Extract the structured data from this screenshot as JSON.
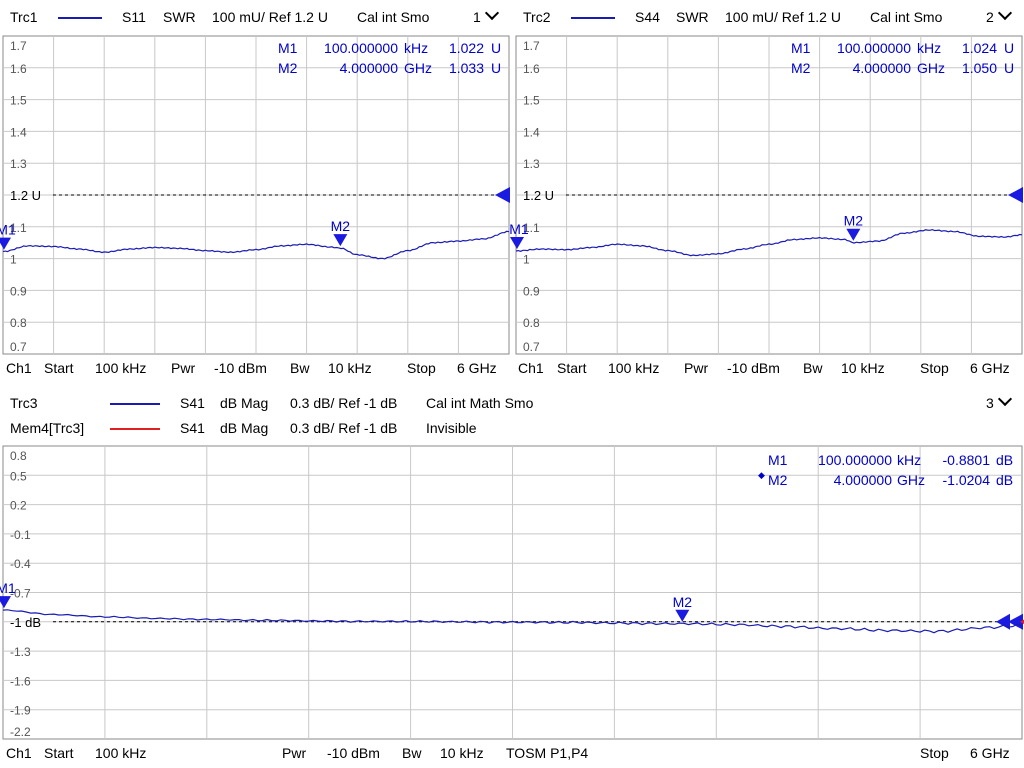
{
  "colors": {
    "trace": "#1a1ab4",
    "memory": "#e02020",
    "marker": "#1a1ae0",
    "grid": "#c8c8c8",
    "frame": "#8a8a8a",
    "marker_text": "#0000cc"
  },
  "charts": [
    {
      "header": {
        "trace": "Trc1",
        "param": "S11",
        "format": "SWR",
        "scale": "100 mU/ Ref 1.2 U",
        "info": "Cal int Smo",
        "channel": "1"
      },
      "markers": [
        {
          "name": "M1",
          "stim": "100.000000",
          "stim_unit": "kHz",
          "resp": "1.022",
          "resp_unit": "U"
        },
        {
          "name": "M2",
          "stim": "4.000000",
          "stim_unit": "GHz",
          "resp": "1.033",
          "resp_unit": "U"
        }
      ],
      "ref_label": "1.2 U",
      "footer": {
        "ch": "Ch1",
        "start_label": "Start",
        "start": "100 kHz",
        "pwr_label": "Pwr",
        "pwr": "-10 dBm",
        "bw_label": "Bw",
        "bw": "10 kHz",
        "stop_label": "Stop",
        "stop": "6 GHz"
      }
    },
    {
      "header": {
        "trace": "Trc2",
        "param": "S44",
        "format": "SWR",
        "scale": "100 mU/ Ref 1.2 U",
        "info": "Cal int Smo",
        "channel": "2"
      },
      "markers": [
        {
          "name": "M1",
          "stim": "100.000000",
          "stim_unit": "kHz",
          "resp": "1.024",
          "resp_unit": "U"
        },
        {
          "name": "M2",
          "stim": "4.000000",
          "stim_unit": "GHz",
          "resp": "1.050",
          "resp_unit": "U"
        }
      ],
      "ref_label": "1.2 U",
      "footer": {
        "ch": "Ch1",
        "start_label": "Start",
        "start": "100 kHz",
        "pwr_label": "Pwr",
        "pwr": "-10 dBm",
        "bw_label": "Bw",
        "bw": "10 kHz",
        "stop_label": "Stop",
        "stop": "6 GHz"
      }
    },
    {
      "header": {
        "trace": "Trc3",
        "param": "S41",
        "format": "dB Mag",
        "scale": "0.3 dB/ Ref -1 dB",
        "info": "Cal int Math Smo",
        "channel": "3"
      },
      "header2": {
        "trace": "Mem4[Trc3]",
        "param": "S41",
        "format": "dB Mag",
        "scale": "0.3 dB/ Ref -1 dB",
        "info": "Invisible"
      },
      "markers": [
        {
          "name": "M1",
          "stim": "100.000000",
          "stim_unit": "kHz",
          "resp": "-0.8801",
          "resp_unit": "dB"
        },
        {
          "name": "M2",
          "stim": "4.000000",
          "stim_unit": "GHz",
          "resp": "-1.0204",
          "resp_unit": "dB"
        }
      ],
      "ref_label": "-1 dB",
      "footer": {
        "ch": "Ch1",
        "start_label": "Start",
        "start": "100 kHz",
        "pwr_label": "Pwr",
        "pwr": "-10 dBm",
        "bw_label": "Bw",
        "bw": "10 kHz",
        "cal_label": "TOSM P1,P4",
        "stop_label": "Stop",
        "stop": "6 GHz"
      }
    }
  ],
  "chart_data": [
    {
      "type": "line",
      "xlim": [
        0.0001,
        6
      ],
      "ylim": [
        0.7,
        1.7
      ],
      "yticks": [
        "1.7",
        "1.6",
        "1.5",
        "1.4",
        "1.3",
        "1.2 U",
        "1.1",
        "1",
        "0.9",
        "0.8",
        "0.7"
      ],
      "reference": 1.2,
      "series": [
        {
          "x": [
            0.0001,
            0.3,
            0.6,
            0.9,
            1.2,
            1.5,
            1.8,
            2.1,
            2.4,
            2.7,
            3.0,
            3.3,
            3.6,
            3.9,
            4.0,
            4.2,
            4.5,
            4.8,
            5.1,
            5.4,
            5.7,
            6.0
          ],
          "values": [
            1.022,
            1.04,
            1.038,
            1.03,
            1.02,
            1.03,
            1.035,
            1.032,
            1.025,
            1.02,
            1.028,
            1.04,
            1.045,
            1.036,
            1.033,
            1.012,
            1.0,
            1.025,
            1.05,
            1.055,
            1.062,
            1.085
          ]
        }
      ],
      "markers": [
        {
          "name": "M1",
          "x": 0.0001,
          "y": 1.022
        },
        {
          "name": "M2",
          "x": 4.0,
          "y": 1.033
        }
      ]
    },
    {
      "type": "line",
      "xlim": [
        0.0001,
        6
      ],
      "ylim": [
        0.7,
        1.7
      ],
      "yticks": [
        "1.7",
        "1.6",
        "1.5",
        "1.4",
        "1.3",
        "1.2 U",
        "1.1",
        "1",
        "0.9",
        "0.8",
        "0.7"
      ],
      "reference": 1.2,
      "series": [
        {
          "x": [
            0.0001,
            0.3,
            0.6,
            0.9,
            1.2,
            1.5,
            1.8,
            2.1,
            2.4,
            2.7,
            3.0,
            3.3,
            3.6,
            3.9,
            4.0,
            4.3,
            4.6,
            4.9,
            5.2,
            5.5,
            5.8,
            6.0
          ],
          "values": [
            1.024,
            1.03,
            1.028,
            1.035,
            1.045,
            1.04,
            1.025,
            1.01,
            1.015,
            1.03,
            1.045,
            1.06,
            1.065,
            1.06,
            1.05,
            1.055,
            1.08,
            1.09,
            1.085,
            1.07,
            1.068,
            1.075
          ]
        }
      ],
      "markers": [
        {
          "name": "M1",
          "x": 0.0001,
          "y": 1.024
        },
        {
          "name": "M2",
          "x": 4.0,
          "y": 1.05
        }
      ]
    },
    {
      "type": "line",
      "xlim": [
        0.0001,
        6
      ],
      "ylim": [
        -2.2,
        0.8
      ],
      "yticks": [
        "0.8",
        "0.5",
        "0.2",
        "-0.1",
        "-0.4",
        "-0.7",
        "-1 dB",
        "-1.3",
        "-1.6",
        "-1.9",
        "-2.2"
      ],
      "reference": -1.0,
      "series": [
        {
          "x": [
            0.0001,
            0.3,
            0.6,
            0.9,
            1.2,
            1.5,
            1.8,
            2.1,
            2.4,
            2.7,
            3.0,
            3.3,
            3.6,
            3.9,
            4.0,
            4.3,
            4.6,
            4.9,
            5.2,
            5.5,
            5.8,
            6.0
          ],
          "values": [
            -0.88,
            -0.925,
            -0.95,
            -0.965,
            -0.975,
            -0.985,
            -0.99,
            -0.995,
            -0.998,
            -1.0,
            -1.003,
            -1.008,
            -1.012,
            -1.018,
            -1.02,
            -1.03,
            -1.045,
            -1.07,
            -1.09,
            -1.095,
            -1.06,
            -1.04
          ]
        }
      ],
      "markers": [
        {
          "name": "M1",
          "x": 0.0001,
          "y": -0.8801
        },
        {
          "name": "M2",
          "x": 4.0,
          "y": -1.0204
        }
      ]
    }
  ]
}
